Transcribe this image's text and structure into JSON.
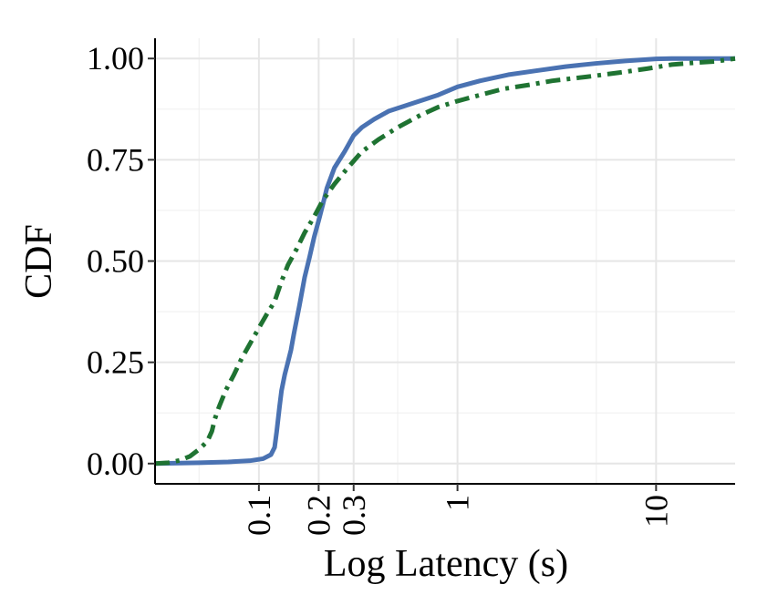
{
  "chart_data": {
    "type": "line",
    "xlabel": "Log Latency (s)",
    "ylabel": "CDF",
    "x_scale": "log",
    "xlim": [
      0.03,
      25
    ],
    "ylim": [
      -0.05,
      1.05
    ],
    "x_ticks": [
      0.1,
      0.2,
      0.3,
      1,
      10
    ],
    "x_tick_labels": [
      "0.1",
      "0.2",
      "0.3",
      "1",
      "10"
    ],
    "y_ticks": [
      0,
      0.25,
      0.5,
      0.75,
      1
    ],
    "y_tick_labels": [
      "0.00",
      "0.25",
      "0.50",
      "0.75",
      "1.00"
    ],
    "grid": true,
    "series": [
      {
        "color": "#4a72b2",
        "style": "solid",
        "points": [
          [
            0.03,
            0.0
          ],
          [
            0.05,
            0.002
          ],
          [
            0.07,
            0.004
          ],
          [
            0.09,
            0.007
          ],
          [
            0.105,
            0.012
          ],
          [
            0.115,
            0.022
          ],
          [
            0.12,
            0.04
          ],
          [
            0.123,
            0.08
          ],
          [
            0.127,
            0.14
          ],
          [
            0.13,
            0.18
          ],
          [
            0.135,
            0.22
          ],
          [
            0.14,
            0.25
          ],
          [
            0.145,
            0.28
          ],
          [
            0.15,
            0.32
          ],
          [
            0.16,
            0.39
          ],
          [
            0.17,
            0.46
          ],
          [
            0.18,
            0.51
          ],
          [
            0.19,
            0.56
          ],
          [
            0.2,
            0.6
          ],
          [
            0.21,
            0.64
          ],
          [
            0.22,
            0.68
          ],
          [
            0.24,
            0.73
          ],
          [
            0.27,
            0.77
          ],
          [
            0.3,
            0.81
          ],
          [
            0.33,
            0.83
          ],
          [
            0.38,
            0.85
          ],
          [
            0.45,
            0.87
          ],
          [
            0.6,
            0.89
          ],
          [
            0.8,
            0.91
          ],
          [
            1.0,
            0.93
          ],
          [
            1.3,
            0.945
          ],
          [
            1.8,
            0.96
          ],
          [
            2.5,
            0.97
          ],
          [
            3.5,
            0.98
          ],
          [
            5.0,
            0.988
          ],
          [
            7.0,
            0.994
          ],
          [
            10.0,
            0.999
          ],
          [
            12.0,
            1.0
          ],
          [
            25.0,
            1.0
          ]
        ]
      },
      {
        "color": "#1f7332",
        "style": "dash-dot",
        "points": [
          [
            0.03,
            0.0
          ],
          [
            0.035,
            0.002
          ],
          [
            0.04,
            0.008
          ],
          [
            0.045,
            0.018
          ],
          [
            0.05,
            0.035
          ],
          [
            0.055,
            0.055
          ],
          [
            0.058,
            0.08
          ],
          [
            0.06,
            0.11
          ],
          [
            0.063,
            0.14
          ],
          [
            0.068,
            0.18
          ],
          [
            0.075,
            0.22
          ],
          [
            0.082,
            0.26
          ],
          [
            0.09,
            0.295
          ],
          [
            0.1,
            0.335
          ],
          [
            0.11,
            0.37
          ],
          [
            0.12,
            0.4
          ],
          [
            0.13,
            0.45
          ],
          [
            0.14,
            0.49
          ],
          [
            0.155,
            0.53
          ],
          [
            0.17,
            0.57
          ],
          [
            0.19,
            0.61
          ],
          [
            0.21,
            0.65
          ],
          [
            0.24,
            0.69
          ],
          [
            0.28,
            0.73
          ],
          [
            0.33,
            0.77
          ],
          [
            0.4,
            0.8
          ],
          [
            0.5,
            0.83
          ],
          [
            0.65,
            0.86
          ],
          [
            0.8,
            0.88
          ],
          [
            1.0,
            0.895
          ],
          [
            1.3,
            0.91
          ],
          [
            1.7,
            0.925
          ],
          [
            2.3,
            0.935
          ],
          [
            3.0,
            0.945
          ],
          [
            4.5,
            0.955
          ],
          [
            6.5,
            0.965
          ],
          [
            9.0,
            0.975
          ],
          [
            12.0,
            0.985
          ],
          [
            16.0,
            0.99
          ],
          [
            20.0,
            0.993
          ],
          [
            25.0,
            1.0
          ]
        ]
      }
    ]
  }
}
